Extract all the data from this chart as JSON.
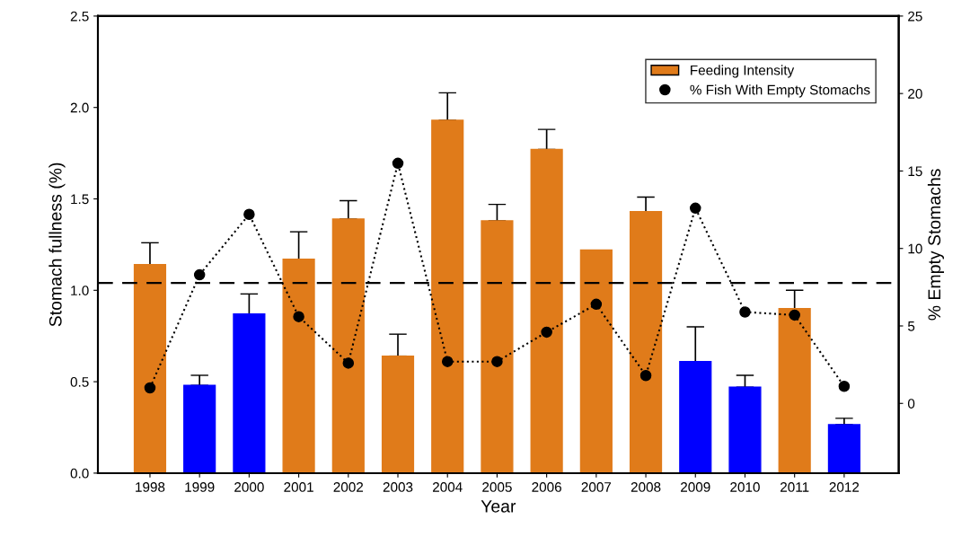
{
  "chart_data": {
    "type": "bar",
    "xlabel": "Year",
    "ylabel": "Stomach fullness (%)",
    "y2label": "% Empty Stomachs",
    "categories": [
      "1998",
      "1999",
      "2000",
      "2001",
      "2002",
      "2003",
      "2004",
      "2005",
      "2006",
      "2007",
      "2008",
      "2009",
      "2010",
      "2011",
      "2012"
    ],
    "series": [
      {
        "name": "Feeding Intensity",
        "color": "#e07b1a",
        "colors": [
          "#e07b1a",
          "#0000ff",
          "#0000ff",
          "#e07b1a",
          "#e07b1a",
          "#e07b1a",
          "#e07b1a",
          "#e07b1a",
          "#e07b1a",
          "#e07b1a",
          "#e07b1a",
          "#0000ff",
          "#0000ff",
          "#e07b1a",
          "#0000ff"
        ],
        "values": [
          1.14,
          0.48,
          0.87,
          1.17,
          1.39,
          0.64,
          1.93,
          1.38,
          1.77,
          1.22,
          1.43,
          0.61,
          0.47,
          0.9,
          0.265
        ],
        "errors": [
          [
            1.14,
            1.26
          ],
          [
            0.48,
            0.535
          ],
          [
            0.87,
            0.98
          ],
          [
            1.17,
            1.32
          ],
          [
            1.39,
            1.49
          ],
          [
            0.64,
            0.76
          ],
          [
            1.93,
            2.08
          ],
          [
            1.38,
            1.47
          ],
          [
            1.77,
            1.88
          ],
          null,
          [
            1.43,
            1.51
          ],
          [
            0.61,
            0.8
          ],
          [
            0.47,
            0.535
          ],
          [
            0.9,
            1.0
          ],
          [
            0.265,
            0.3
          ]
        ]
      },
      {
        "name": "% Fish With Empty Stomachs",
        "type": "line",
        "axis": "y2",
        "color": "#000000",
        "marker": "circle",
        "line_style": "dotted",
        "values": [
          1.0,
          8.3,
          12.2,
          5.6,
          2.6,
          15.5,
          2.7,
          2.7,
          4.6,
          6.4,
          1.8,
          12.6,
          5.9,
          5.7,
          1.1
        ]
      }
    ],
    "ylim": [
      0,
      2.5
    ],
    "yticks": [
      {
        "value": 0,
        "label": "0.0"
      },
      {
        "value": 0.5,
        "label": "0.5"
      },
      {
        "value": 1,
        "label": "1.0"
      },
      {
        "value": 1.5,
        "label": "1.5"
      },
      {
        "value": 2,
        "label": "2.0"
      },
      {
        "value": 2.5,
        "label": "2.5"
      }
    ],
    "y2lim": [
      -4.5,
      25
    ],
    "y2ticks": [
      0,
      5,
      10,
      15,
      20,
      25
    ],
    "ref_lines": [
      {
        "axis": "y",
        "value": 1.04,
        "line_style": "dashed",
        "color": "#000000"
      }
    ],
    "legend": "top right",
    "grid": false
  }
}
